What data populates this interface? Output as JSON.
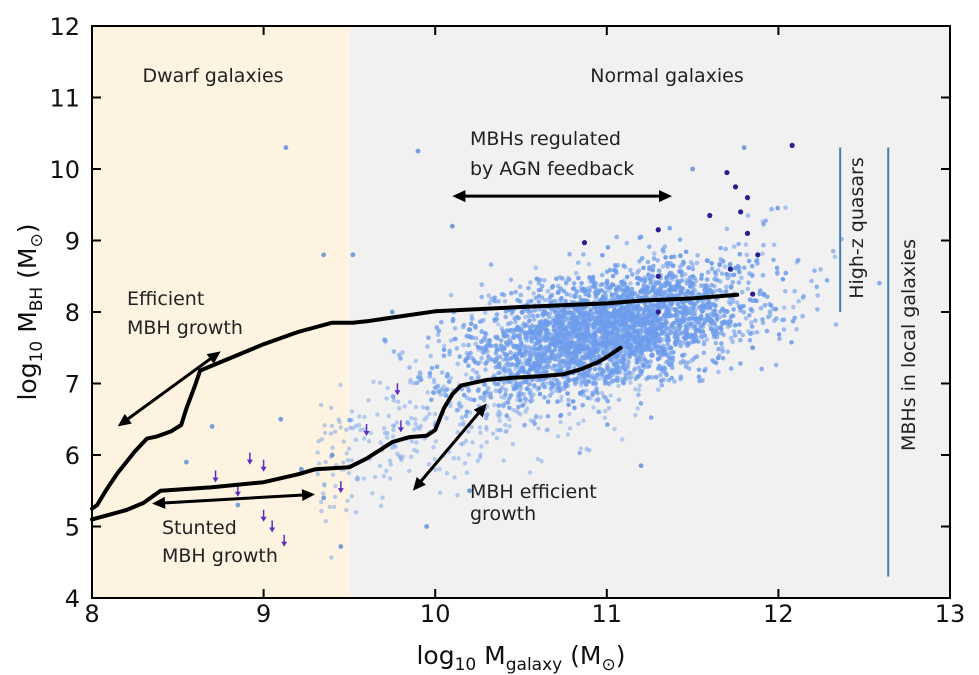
{
  "chart_data": {
    "type": "scatter",
    "xlim": [
      8,
      13
    ],
    "ylim": [
      4,
      12
    ],
    "x_ticks": [
      8,
      9,
      10,
      11,
      12,
      13
    ],
    "y_ticks": [
      4,
      5,
      6,
      7,
      8,
      9,
      10,
      11,
      12
    ],
    "xlabel": {
      "prefix": "log",
      "sub1": "10",
      "mid": " M",
      "sub2": "galaxy",
      "suffix": " (M",
      "sun": "⊙",
      "close": ")"
    },
    "ylabel": {
      "prefix": "log",
      "sub1": "10",
      "mid": " M",
      "sub2": "BH",
      "suffix": " (M",
      "sun": "⊙",
      "close": ")"
    },
    "regions": [
      {
        "label": "Dwarf galaxies",
        "x_range": [
          8,
          9.5
        ],
        "color": "#fdf3e0"
      },
      {
        "label": "Normal galaxies",
        "x_range": [
          9.5,
          13
        ],
        "color": "#f1f1f1"
      }
    ],
    "scatter_cloud": {
      "name": "simulated MBHs",
      "color": "#6d9cec",
      "center": [
        11.0,
        7.75
      ],
      "x_spread": 0.42,
      "y_spread": 0.48,
      "n_points": 3000
    },
    "scatter_outliers": [
      {
        "x": 9.13,
        "y": 10.3
      },
      {
        "x": 9.35,
        "y": 8.8
      },
      {
        "x": 9.52,
        "y": 8.8
      },
      {
        "x": 9.9,
        "y": 10.25
      },
      {
        "x": 10.1,
        "y": 9.2
      },
      {
        "x": 9.75,
        "y": 8.0
      },
      {
        "x": 8.7,
        "y": 6.4
      },
      {
        "x": 8.55,
        "y": 5.9
      },
      {
        "x": 9.1,
        "y": 6.5
      },
      {
        "x": 9.4,
        "y": 6.0
      },
      {
        "x": 9.22,
        "y": 5.8
      },
      {
        "x": 9.35,
        "y": 5.4
      },
      {
        "x": 8.85,
        "y": 5.3
      },
      {
        "x": 9.45,
        "y": 4.72
      },
      {
        "x": 11.2,
        "y": 5.85
      },
      {
        "x": 10.2,
        "y": 5.5
      },
      {
        "x": 9.95,
        "y": 5.0
      },
      {
        "x": 11.85,
        "y": 7.5
      },
      {
        "x": 11.5,
        "y": 10.0
      },
      {
        "x": 11.8,
        "y": 10.3
      }
    ],
    "high_z_points": [
      {
        "x": 12.08,
        "y": 10.33
      },
      {
        "x": 11.7,
        "y": 9.95
      },
      {
        "x": 11.75,
        "y": 9.75
      },
      {
        "x": 11.82,
        "y": 9.6
      },
      {
        "x": 11.78,
        "y": 9.4
      },
      {
        "x": 11.6,
        "y": 9.35
      },
      {
        "x": 11.3,
        "y": 9.15
      },
      {
        "x": 11.88,
        "y": 8.8
      },
      {
        "x": 11.82,
        "y": 9.1
      },
      {
        "x": 11.72,
        "y": 8.6
      },
      {
        "x": 10.87,
        "y": 8.97
      },
      {
        "x": 11.3,
        "y": 8.5
      },
      {
        "x": 11.85,
        "y": 8.25
      },
      {
        "x": 11.3,
        "y": 8.0
      }
    ],
    "upper_limits": [
      {
        "x": 8.72,
        "y": 5.7
      },
      {
        "x": 8.92,
        "y": 5.95
      },
      {
        "x": 9.0,
        "y": 5.85
      },
      {
        "x": 8.85,
        "y": 5.5
      },
      {
        "x": 9.0,
        "y": 5.15
      },
      {
        "x": 9.05,
        "y": 5.0
      },
      {
        "x": 9.12,
        "y": 4.8
      },
      {
        "x": 9.45,
        "y": 5.55
      },
      {
        "x": 9.6,
        "y": 6.35
      },
      {
        "x": 9.78,
        "y": 6.92
      },
      {
        "x": 9.8,
        "y": 6.4
      }
    ],
    "series": [
      {
        "name": "Efficient MBH growth track",
        "x": [
          8.0,
          8.03,
          8.08,
          8.15,
          8.25,
          8.32,
          8.38,
          8.46,
          8.52,
          8.55,
          8.6,
          8.63,
          8.7,
          8.8,
          9.0,
          9.2,
          9.4,
          9.52,
          9.6,
          10.0,
          10.5,
          11.0,
          11.2,
          11.5,
          11.76
        ],
        "y": [
          5.25,
          5.3,
          5.5,
          5.75,
          6.05,
          6.23,
          6.26,
          6.33,
          6.42,
          6.65,
          6.97,
          7.18,
          7.25,
          7.35,
          7.55,
          7.72,
          7.85,
          7.85,
          7.87,
          8.01,
          8.07,
          8.12,
          8.16,
          8.19,
          8.24
        ]
      },
      {
        "name": "Stunted MBH growth track",
        "x": [
          8.0,
          8.2,
          8.3,
          8.4,
          8.7,
          9.0,
          9.2,
          9.3,
          9.5,
          9.6,
          9.75,
          9.85,
          9.95,
          10.0,
          10.05,
          10.1,
          10.15,
          10.3,
          10.45,
          10.6,
          10.75,
          10.85,
          10.9,
          10.95,
          11.0,
          11.08
        ],
        "y": [
          5.1,
          5.23,
          5.33,
          5.5,
          5.55,
          5.62,
          5.73,
          5.8,
          5.83,
          5.95,
          6.18,
          6.25,
          6.27,
          6.35,
          6.65,
          6.85,
          6.97,
          7.05,
          7.08,
          7.1,
          7.13,
          7.2,
          7.25,
          7.3,
          7.37,
          7.5
        ]
      }
    ],
    "arrows": [
      {
        "name": "efficient-growth-dwarf",
        "from": [
          8.15,
          6.4
        ],
        "to": [
          8.75,
          7.45
        ]
      },
      {
        "name": "stunted-growth",
        "from": [
          8.35,
          5.32
        ],
        "to": [
          9.3,
          5.45
        ]
      },
      {
        "name": "mbh-efficient-growth",
        "from": [
          9.87,
          5.5
        ],
        "to": [
          10.3,
          6.72
        ]
      },
      {
        "name": "agn-feedback",
        "from": [
          10.1,
          9.62
        ],
        "to": [
          11.38,
          9.62
        ]
      }
    ],
    "vertical_lines": [
      {
        "label": "High-z quasars",
        "x": 12.36,
        "y_range": [
          8.0,
          10.3
        ],
        "color": "#3d7eb5"
      },
      {
        "label": "MBHs in local galaxies",
        "x": 12.64,
        "y_range": [
          4.3,
          10.3
        ],
        "color": "#3d7eb5"
      }
    ],
    "annotations": [
      {
        "lines": [
          "Efficient",
          "MBH growth"
        ]
      },
      {
        "lines": [
          "Stunted",
          "MBH growth"
        ]
      },
      {
        "lines": [
          "MBH efficient",
          "growth"
        ]
      },
      {
        "lines": [
          "MBHs regulated",
          "by AGN feedback"
        ]
      }
    ]
  }
}
